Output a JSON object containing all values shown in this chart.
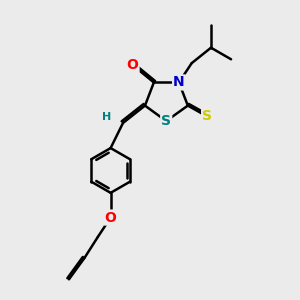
{
  "background_color": "#ebebeb",
  "atom_colors": {
    "O": "#ff0000",
    "N": "#0000cc",
    "S_yellow": "#cccc00",
    "S_teal": "#008080",
    "H": "#008080"
  },
  "bond_color": "#000000",
  "bond_width": 1.8,
  "figsize": [
    3.0,
    3.0
  ],
  "dpi": 100
}
